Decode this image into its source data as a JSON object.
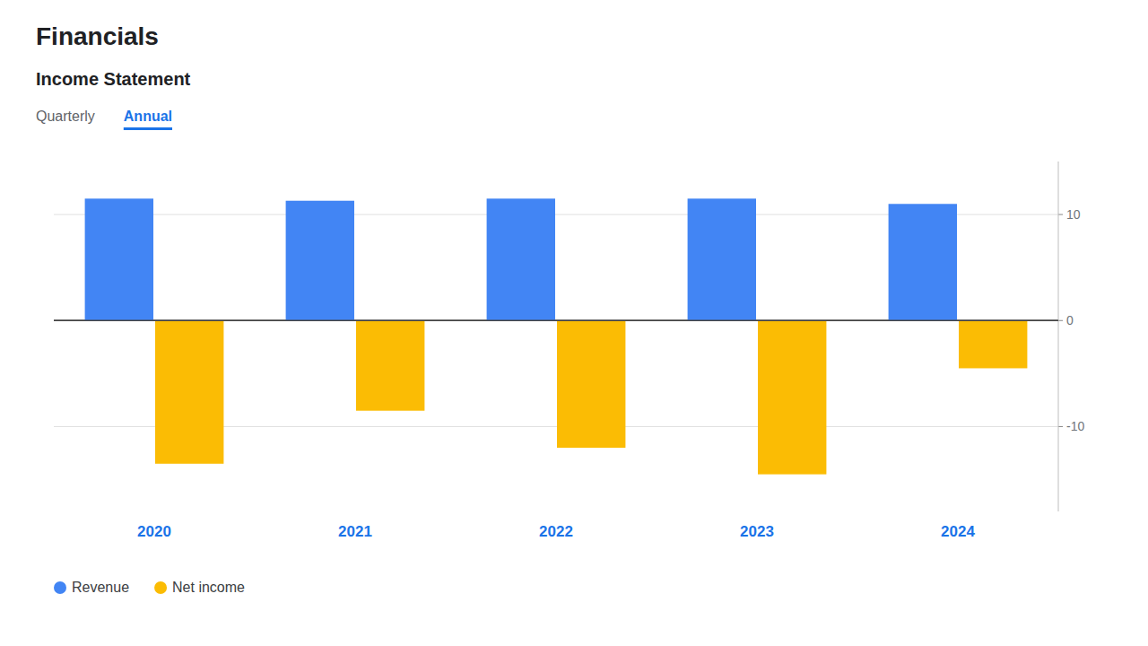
{
  "chart_data": {
    "type": "bar",
    "title": "Financials",
    "subtitle": "Income Statement",
    "annotations": [
      "Quarterly",
      "Annual"
    ],
    "categories": [
      "2020",
      "2021",
      "2022",
      "2023",
      "2024"
    ],
    "series": [
      {
        "name": "Revenue",
        "color": "#4285F4",
        "values": [
          11.5,
          11.3,
          11.5,
          11.5,
          11.0
        ]
      },
      {
        "name": "Net income",
        "color": "#FBBC04",
        "values": [
          -13.5,
          -8.5,
          -12.0,
          -14.5,
          -4.5
        ]
      }
    ],
    "ylim": [
      -18,
      15
    ],
    "yticks": [
      -10,
      0,
      10
    ],
    "grid": true,
    "legend": "lower left"
  }
}
